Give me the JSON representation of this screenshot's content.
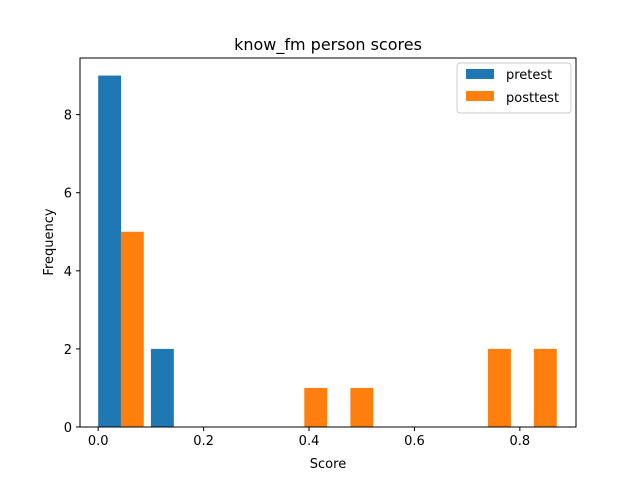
{
  "chart_data": {
    "type": "bar",
    "title": "know_fm person scores",
    "xlabel": "Score",
    "ylabel": "Frequency",
    "xlim": [
      -0.0345,
      0.9065
    ],
    "ylim": [
      0,
      9.45
    ],
    "x_ticks": [
      0.0,
      0.2,
      0.4,
      0.6,
      0.8
    ],
    "x_tick_labels": [
      "0.0",
      "0.2",
      "0.4",
      "0.6",
      "0.8"
    ],
    "y_ticks": [
      0,
      2,
      4,
      6,
      8
    ],
    "y_tick_labels": [
      "0",
      "2",
      "4",
      "6",
      "8"
    ],
    "bin_width": 0.087,
    "legend_position": "top-right",
    "grid": false,
    "series": [
      {
        "name": "pretest",
        "color": "#1f77b4",
        "bars": [
          {
            "x": 0.0,
            "value": 9
          },
          {
            "x": 0.1,
            "value": 2
          }
        ]
      },
      {
        "name": "posttest",
        "color": "#ff7f0e",
        "bars": [
          {
            "x": 0.043,
            "value": 5
          },
          {
            "x": 0.391,
            "value": 1
          },
          {
            "x": 0.4785,
            "value": 1
          },
          {
            "x": 0.7395,
            "value": 2
          },
          {
            "x": 0.8265,
            "value": 2
          }
        ]
      }
    ]
  }
}
